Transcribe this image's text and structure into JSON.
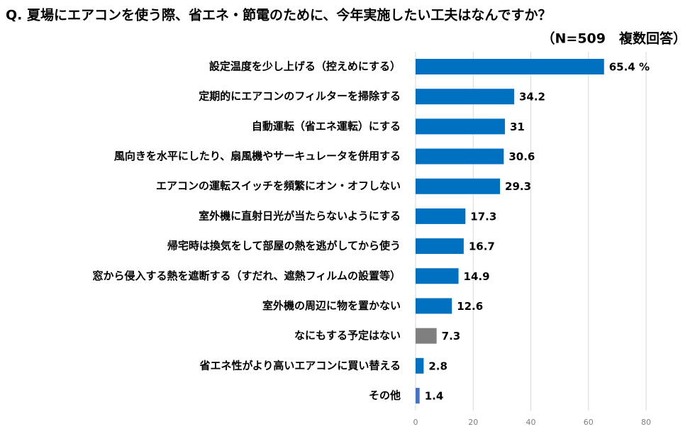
{
  "chart_data": {
    "type": "bar",
    "orientation": "horizontal",
    "title": "Q.  夏場にエアコンを使う際、省エネ・節電のために、今年実施したい工夫はなんですか？",
    "subtitle": "（N=509　複数回答）",
    "categories": [
      "設定温度を少し上げる（控えめにする）",
      "定期的にエアコンのフィルターを掃除する",
      "自動運転（省エネ運転）にする",
      "風向きを水平にしたり、扇風機やサーキュレータを併用する",
      "エアコンの運転スイッチを頻繁にオン・オフしない",
      "室外機に直射日光が当たらないようにする",
      "帰宅時は換気をして部屋の熱を逃がしてから使う",
      "窓から侵入する熱を遮断する（すだれ、遮熱フィルムの設置等）",
      "室外機の周辺に物を置かない",
      "なにもする予定はない",
      "省エネ性がより高いエアコンに買い替える",
      "その他"
    ],
    "values": [
      65.4,
      34.2,
      31,
      30.6,
      29.3,
      17.3,
      16.7,
      14.9,
      12.6,
      7.3,
      2.8,
      1.4
    ],
    "value_labels": [
      "65.4 %",
      "34.2",
      "31",
      "30.6",
      "29.3",
      "17.3",
      "16.7",
      "14.9",
      "12.6",
      "7.3",
      "2.8",
      "1.4"
    ],
    "colors": [
      "#0070c0",
      "#0070c0",
      "#0070c0",
      "#0070c0",
      "#0070c0",
      "#0070c0",
      "#0070c0",
      "#0070c0",
      "#0070c0",
      "#7f7f7f",
      "#0070c0",
      "#4472c4"
    ],
    "xlim": [
      0,
      95
    ],
    "xticks": [
      0,
      20,
      40,
      60,
      80
    ],
    "grid": true
  }
}
